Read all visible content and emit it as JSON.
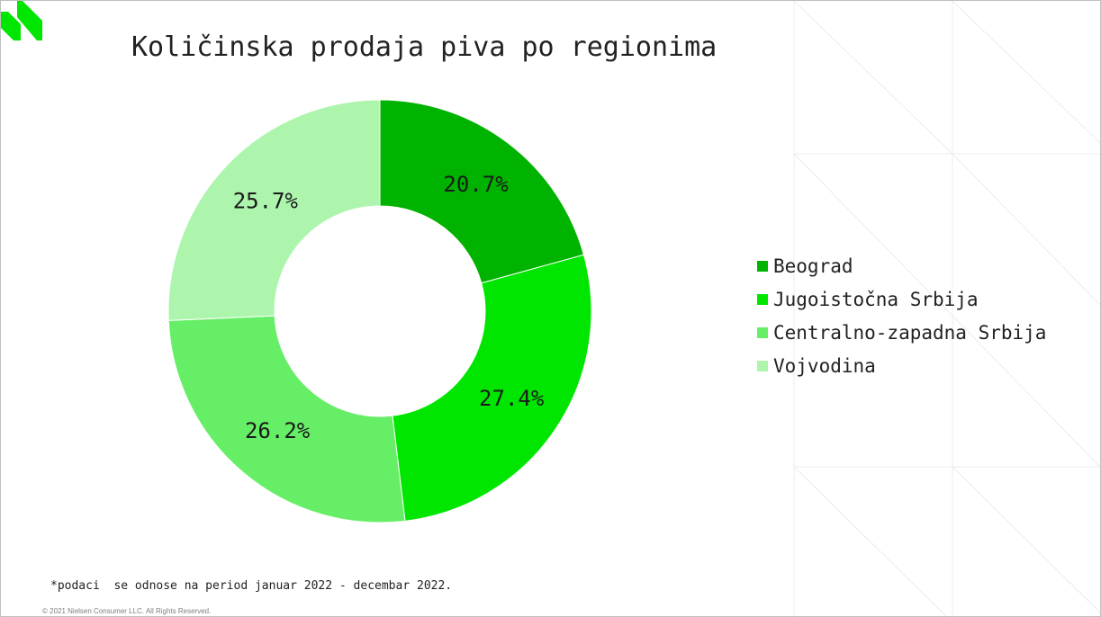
{
  "slide": {
    "title": "Količinska prodaja piva po regionima",
    "footnote": "*podaci  se odnose na period januar 2022 - decembar 2022.",
    "copyright": "© 2021 Nielsen Consumer LLC. All Rights Reserved.",
    "logo_icon": "nielsen-logo-icon",
    "accent_color": "#00e600"
  },
  "chart_data": {
    "type": "pie",
    "variant": "donut",
    "title": "",
    "categories": [
      "Beograd",
      "Jugoistočna Srbija",
      "Centralno-zapadna Srbija",
      "Vojvodina"
    ],
    "values": [
      20.7,
      27.4,
      26.2,
      25.7
    ],
    "labels": [
      "20.7%",
      "27.4%",
      "26.2%",
      "25.7%"
    ],
    "unit": "%",
    "colors": [
      "#00b300",
      "#00e600",
      "#66ee66",
      "#adf5ad"
    ],
    "legend_position": "right",
    "start": "top",
    "direction": "clockwise"
  }
}
